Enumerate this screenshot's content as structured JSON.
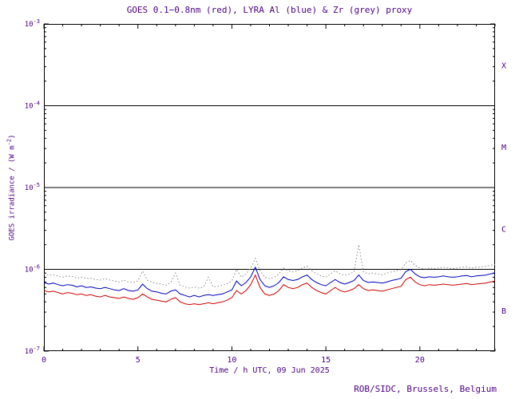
{
  "chart_data": {
    "type": "line",
    "title": "GOES 0.1−0.8nm (red), LYRA Al (blue) & Zr (grey) proxy",
    "xlabel": "Time / h UTC, 09 Jun 2025",
    "ylabel_parts": {
      "prefix": "GOES irradiance / (W m",
      "sup": "-2",
      "suffix": ")"
    },
    "credit": "ROB/SIDC, Brussels, Belgium",
    "x_range": [
      0,
      24
    ],
    "x_major_ticks": [
      0,
      5,
      10,
      15,
      20
    ],
    "x_tick_labels": [
      "0",
      "5",
      "10",
      "15",
      "20"
    ],
    "x_minor_step_hours": 1,
    "y_scale": "log",
    "y_range": [
      1e-07,
      0.001
    ],
    "y_tick_exponents": [
      -3,
      -4,
      -5,
      -6,
      -7
    ],
    "y_tick_base": "10",
    "class_boundary_exponents": [
      -4,
      -5,
      -6
    ],
    "flare_class_labels": [
      {
        "label": "X",
        "mid_exponent": -3.5
      },
      {
        "label": "M",
        "mid_exponent": -4.5
      },
      {
        "label": "C",
        "mid_exponent": -5.5
      },
      {
        "label": "B",
        "mid_exponent": -6.5
      }
    ],
    "grid": false,
    "legend": "in title (colors)",
    "value_scale": 1e-07,
    "x_step_hours": 0.25,
    "series": [
      {
        "name": "GOES 0.1-0.8nm",
        "color": "#cc0000",
        "style": "solid",
        "values": [
          5.5,
          5.3,
          5.4,
          5.2,
          5.0,
          5.2,
          5.1,
          4.9,
          5.0,
          4.8,
          4.9,
          4.7,
          4.6,
          4.8,
          4.6,
          4.5,
          4.4,
          4.6,
          4.4,
          4.3,
          4.5,
          5.0,
          4.6,
          4.3,
          4.2,
          4.1,
          4.0,
          4.3,
          4.5,
          4.0,
          3.8,
          3.7,
          3.8,
          3.7,
          3.8,
          3.9,
          3.8,
          3.9,
          4.0,
          4.2,
          4.5,
          5.5,
          5.0,
          5.5,
          6.5,
          8.5,
          6.0,
          5.0,
          4.8,
          5.0,
          5.5,
          6.5,
          6.0,
          5.8,
          6.0,
          6.5,
          6.8,
          6.0,
          5.5,
          5.2,
          5.0,
          5.5,
          6.0,
          5.5,
          5.3,
          5.5,
          5.8,
          6.5,
          5.8,
          5.5,
          5.6,
          5.5,
          5.4,
          5.6,
          5.8,
          6.0,
          6.2,
          7.5,
          8.0,
          7.0,
          6.5,
          6.3,
          6.5,
          6.4,
          6.5,
          6.6,
          6.5,
          6.4,
          6.5,
          6.6,
          6.7,
          6.5,
          6.6,
          6.7,
          6.8,
          7.0,
          7.2
        ]
      },
      {
        "name": "LYRA Al proxy",
        "color": "#0000bb",
        "style": "solid",
        "values": [
          6.9,
          6.6,
          6.8,
          6.5,
          6.3,
          6.5,
          6.4,
          6.1,
          6.3,
          6.0,
          6.1,
          5.9,
          5.8,
          6.0,
          5.8,
          5.6,
          5.5,
          5.8,
          5.5,
          5.4,
          5.6,
          6.6,
          5.8,
          5.4,
          5.3,
          5.1,
          5.0,
          5.4,
          5.6,
          5.0,
          4.8,
          4.6,
          4.8,
          4.6,
          4.8,
          4.9,
          4.8,
          4.9,
          5.0,
          5.3,
          5.6,
          7.2,
          6.3,
          6.9,
          8.1,
          10.6,
          7.5,
          6.3,
          6.0,
          6.3,
          6.9,
          8.1,
          7.5,
          7.3,
          7.5,
          8.1,
          8.5,
          7.5,
          6.9,
          6.5,
          6.3,
          6.9,
          7.5,
          6.9,
          6.6,
          6.9,
          7.3,
          8.5,
          7.3,
          6.9,
          7.0,
          6.9,
          6.8,
          7.0,
          7.3,
          7.5,
          7.8,
          9.4,
          10.0,
          8.8,
          8.1,
          7.9,
          8.1,
          8.0,
          8.1,
          8.3,
          8.1,
          8.0,
          8.1,
          8.3,
          8.4,
          8.1,
          8.3,
          8.4,
          8.5,
          8.8,
          9.0
        ]
      },
      {
        "name": "LYRA Zr proxy",
        "color": "#888888",
        "style": "dotted",
        "values": [
          8.8,
          8.5,
          8.6,
          8.3,
          8.0,
          8.3,
          8.2,
          7.8,
          8.0,
          7.7,
          7.8,
          7.5,
          7.4,
          7.7,
          7.4,
          7.2,
          7.0,
          7.4,
          7.0,
          6.9,
          7.2,
          9.5,
          7.4,
          6.9,
          6.7,
          6.6,
          6.4,
          6.9,
          9.0,
          6.4,
          6.1,
          5.9,
          6.1,
          5.9,
          6.1,
          8.0,
          6.1,
          6.2,
          6.4,
          6.7,
          7.2,
          10.0,
          8.0,
          8.8,
          10.4,
          13.6,
          9.6,
          8.0,
          7.7,
          8.0,
          8.8,
          10.4,
          9.6,
          9.3,
          9.6,
          10.4,
          10.9,
          9.6,
          8.8,
          8.3,
          8.0,
          8.8,
          9.6,
          8.8,
          8.5,
          8.8,
          9.3,
          20.0,
          9.3,
          8.8,
          9.0,
          8.8,
          8.6,
          9.0,
          9.3,
          9.6,
          9.9,
          12.0,
          12.8,
          11.2,
          10.4,
          10.1,
          10.4,
          10.2,
          10.4,
          10.6,
          10.4,
          10.2,
          10.4,
          10.6,
          10.7,
          10.4,
          10.6,
          10.7,
          10.9,
          11.2,
          11.5
        ]
      }
    ],
    "colors": {
      "text": "#4b0082",
      "axis": "#000000",
      "background": "#ffffff",
      "goes_red": "#cc0000",
      "lyra_al_blue": "#0000bb",
      "lyra_zr_grey": "#888888"
    }
  }
}
